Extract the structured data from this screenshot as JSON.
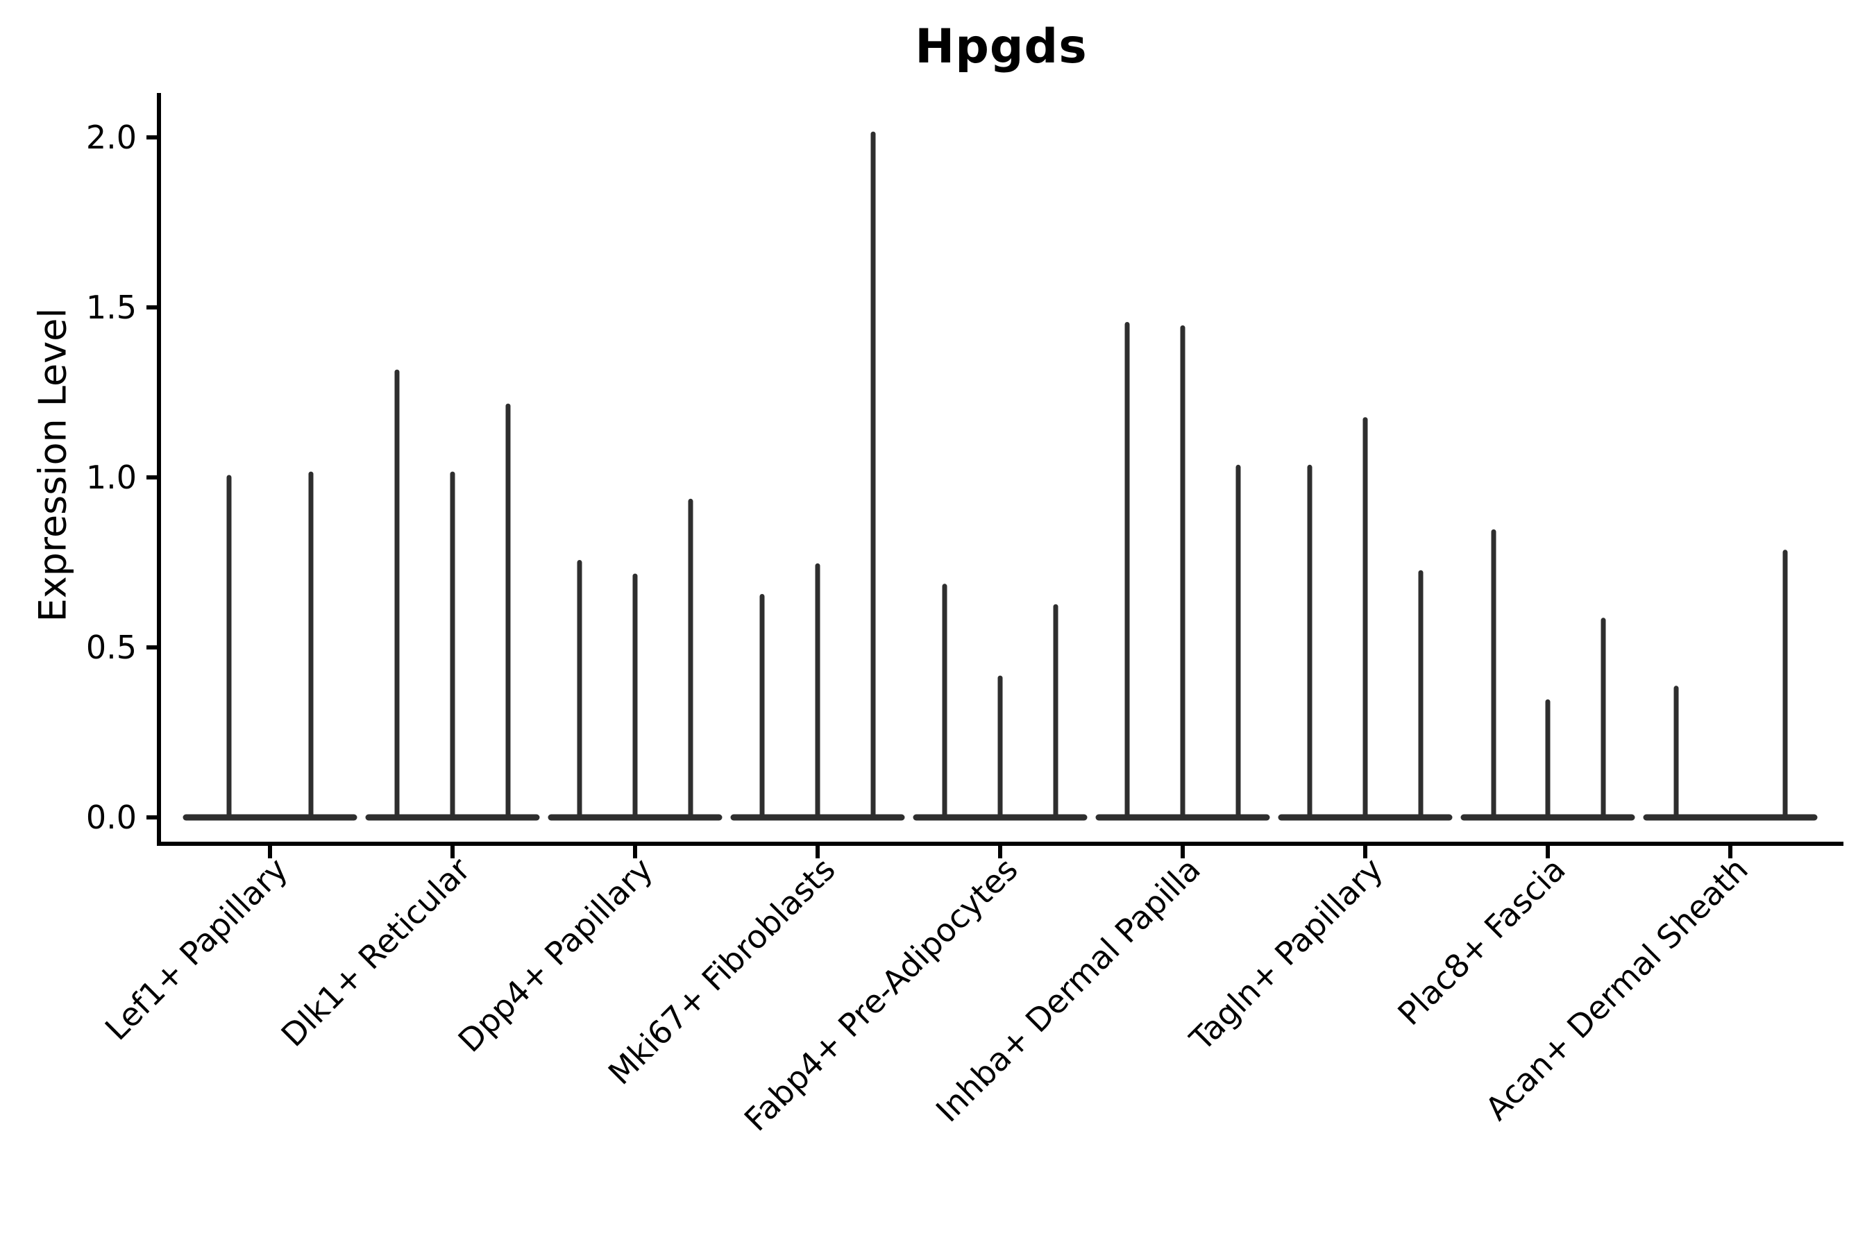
{
  "chart_data": {
    "type": "violin",
    "title": "Hpgds",
    "xlabel": "",
    "ylabel": "Expression Level",
    "yticks": [
      0.0,
      0.5,
      1.0,
      1.5,
      2.0
    ],
    "ylim": [
      -0.08,
      2.13
    ],
    "grid": false,
    "legend": "none",
    "categories": [
      "Lef1+ Papillary",
      "Dlk1+ Reticular",
      "Dpp4+ Papillary",
      "Mki67+ Fibroblasts",
      "Fabp4+ Pre-Adipocytes",
      "Inhba+ Dermal Papilla",
      "Tagln+ Papillary",
      "Plac8+ Fascia",
      "Acan+ Dermal Sheath"
    ],
    "groups": [
      {
        "label": "Lef1+ Papillary",
        "violins": [
          {
            "dx": -59,
            "max": 1.0
          },
          {
            "dx": 59,
            "max": 1.01
          }
        ]
      },
      {
        "label": "Dlk1+ Reticular",
        "violins": [
          {
            "dx": -80,
            "max": 1.31
          },
          {
            "dx": 0,
            "max": 1.01
          },
          {
            "dx": 80,
            "max": 1.21
          }
        ]
      },
      {
        "label": "Dpp4+ Papillary",
        "violins": [
          {
            "dx": -80,
            "max": 0.75
          },
          {
            "dx": 0,
            "max": 0.71
          },
          {
            "dx": 80,
            "max": 0.93
          }
        ]
      },
      {
        "label": "Mki67+ Fibroblasts",
        "violins": [
          {
            "dx": -80,
            "max": 0.65
          },
          {
            "dx": 0,
            "max": 0.74
          },
          {
            "dx": 80,
            "max": 2.01
          }
        ]
      },
      {
        "label": "Fabp4+ Pre-Adipocytes",
        "violins": [
          {
            "dx": -80,
            "max": 0.68
          },
          {
            "dx": 0,
            "max": 0.41
          },
          {
            "dx": 80,
            "max": 0.62
          }
        ]
      },
      {
        "label": "Inhba+ Dermal Papilla",
        "violins": [
          {
            "dx": -80,
            "max": 1.45
          },
          {
            "dx": 0,
            "max": 1.44
          },
          {
            "dx": 80,
            "max": 1.03
          }
        ]
      },
      {
        "label": "Tagln+ Papillary",
        "violins": [
          {
            "dx": -80,
            "max": 1.03
          },
          {
            "dx": 0,
            "max": 1.17
          },
          {
            "dx": 80,
            "max": 0.72
          }
        ]
      },
      {
        "label": "Plac8+ Fascia",
        "violins": [
          {
            "dx": -78,
            "max": 0.84
          },
          {
            "dx": 0,
            "max": 0.34
          },
          {
            "dx": 80,
            "max": 0.58
          }
        ]
      },
      {
        "label": "Acan+ Dermal Sheath",
        "violins": [
          {
            "dx": -78,
            "max": 0.38
          },
          {
            "dx": 79,
            "max": 0.78
          }
        ]
      }
    ],
    "colors": {
      "violin_line": "#2e2e2e",
      "axis": "#000000",
      "text": "#000000",
      "background": "#ffffff"
    }
  }
}
